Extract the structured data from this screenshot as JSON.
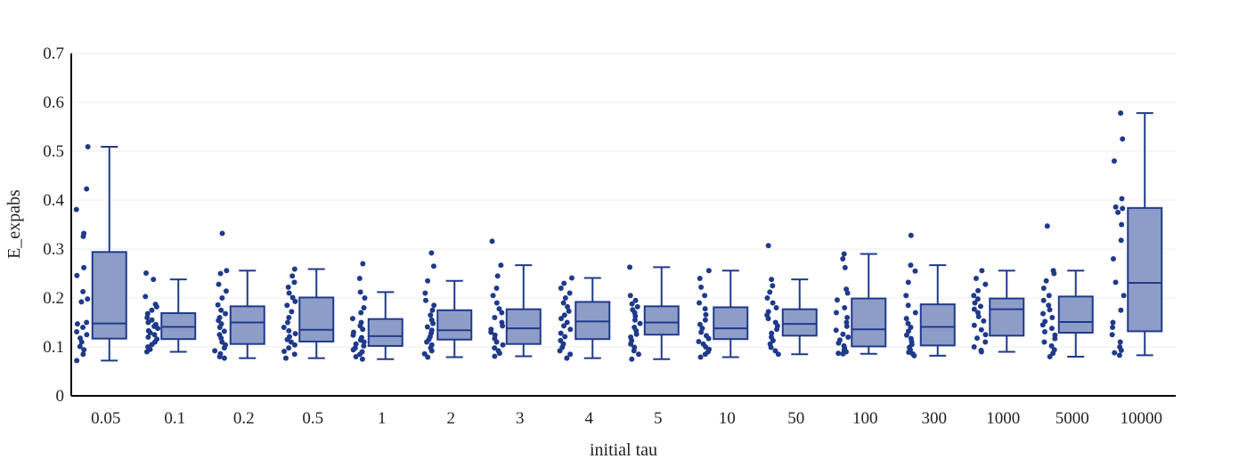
{
  "chart_data": {
    "type": "box",
    "title": "",
    "xlabel": "initial tau",
    "ylabel": "E_expabs",
    "ylim": [
      0,
      0.7
    ],
    "yticks": [
      0,
      0.1,
      0.2,
      0.3,
      0.4,
      0.5,
      0.6,
      0.7
    ],
    "ytick_labels": [
      "0",
      "0.1",
      "0.2",
      "0.3",
      "0.4",
      "0.5",
      "0.6",
      "0.7"
    ],
    "grid": true,
    "colors": {
      "box_fill": "#8e9dc8",
      "box_line": "#1f3a8a",
      "points": "#1f3a8a",
      "grid": "#eeeeee",
      "axis": "#000000"
    },
    "categories": [
      "0.05",
      "0.1",
      "0.2",
      "0.5",
      "1",
      "2",
      "3",
      "4",
      "5",
      "10",
      "50",
      "100",
      "300",
      "1000",
      "5000",
      "10000"
    ],
    "boxes": [
      {
        "q1": 0.117,
        "median": 0.148,
        "q3": 0.294,
        "whisker_low": 0.072,
        "whisker_high": 0.509
      },
      {
        "q1": 0.116,
        "median": 0.141,
        "q3": 0.169,
        "whisker_low": 0.09,
        "whisker_high": 0.238
      },
      {
        "q1": 0.106,
        "median": 0.15,
        "q3": 0.183,
        "whisker_low": 0.077,
        "whisker_high": 0.256
      },
      {
        "q1": 0.111,
        "median": 0.135,
        "q3": 0.201,
        "whisker_low": 0.077,
        "whisker_high": 0.259
      },
      {
        "q1": 0.102,
        "median": 0.122,
        "q3": 0.157,
        "whisker_low": 0.075,
        "whisker_high": 0.212
      },
      {
        "q1": 0.115,
        "median": 0.134,
        "q3": 0.175,
        "whisker_low": 0.079,
        "whisker_high": 0.235
      },
      {
        "q1": 0.106,
        "median": 0.138,
        "q3": 0.177,
        "whisker_low": 0.081,
        "whisker_high": 0.267
      },
      {
        "q1": 0.116,
        "median": 0.152,
        "q3": 0.192,
        "whisker_low": 0.077,
        "whisker_high": 0.241
      },
      {
        "q1": 0.125,
        "median": 0.15,
        "q3": 0.183,
        "whisker_low": 0.075,
        "whisker_high": 0.263
      },
      {
        "q1": 0.116,
        "median": 0.138,
        "q3": 0.181,
        "whisker_low": 0.079,
        "whisker_high": 0.256
      },
      {
        "q1": 0.123,
        "median": 0.147,
        "q3": 0.177,
        "whisker_low": 0.085,
        "whisker_high": 0.238
      },
      {
        "q1": 0.101,
        "median": 0.136,
        "q3": 0.199,
        "whisker_low": 0.086,
        "whisker_high": 0.29
      },
      {
        "q1": 0.103,
        "median": 0.141,
        "q3": 0.187,
        "whisker_low": 0.082,
        "whisker_high": 0.267
      },
      {
        "q1": 0.123,
        "median": 0.177,
        "q3": 0.199,
        "whisker_low": 0.09,
        "whisker_high": 0.256
      },
      {
        "q1": 0.129,
        "median": 0.151,
        "q3": 0.203,
        "whisker_low": 0.08,
        "whisker_high": 0.256
      },
      {
        "q1": 0.132,
        "median": 0.231,
        "q3": 0.384,
        "whisker_low": 0.083,
        "whisker_high": 0.578
      }
    ],
    "points": [
      [
        0.509,
        0.423,
        0.381,
        0.332,
        0.326,
        0.262,
        0.246,
        0.213,
        0.198,
        0.192,
        0.15,
        0.147,
        0.14,
        0.131,
        0.125,
        0.118,
        0.11,
        0.101,
        0.094,
        0.085,
        0.072
      ],
      [
        0.251,
        0.238,
        0.203,
        0.187,
        0.182,
        0.175,
        0.168,
        0.16,
        0.155,
        0.15,
        0.146,
        0.142,
        0.138,
        0.133,
        0.129,
        0.125,
        0.12,
        0.116,
        0.11,
        0.105,
        0.1,
        0.095,
        0.09
      ],
      [
        0.332,
        0.256,
        0.25,
        0.228,
        0.214,
        0.2,
        0.186,
        0.175,
        0.168,
        0.16,
        0.154,
        0.147,
        0.14,
        0.132,
        0.125,
        0.118,
        0.11,
        0.104,
        0.098,
        0.092,
        0.086,
        0.08,
        0.077
      ],
      [
        0.259,
        0.245,
        0.232,
        0.222,
        0.21,
        0.201,
        0.193,
        0.185,
        0.172,
        0.16,
        0.15,
        0.14,
        0.133,
        0.127,
        0.121,
        0.115,
        0.11,
        0.104,
        0.098,
        0.091,
        0.085,
        0.077
      ],
      [
        0.27,
        0.24,
        0.212,
        0.2,
        0.18,
        0.17,
        0.158,
        0.15,
        0.143,
        0.136,
        0.13,
        0.124,
        0.119,
        0.114,
        0.11,
        0.106,
        0.102,
        0.098,
        0.094,
        0.09,
        0.085,
        0.08,
        0.075
      ],
      [
        0.292,
        0.265,
        0.235,
        0.21,
        0.195,
        0.185,
        0.175,
        0.165,
        0.155,
        0.148,
        0.141,
        0.134,
        0.128,
        0.121,
        0.115,
        0.11,
        0.104,
        0.098,
        0.092,
        0.086,
        0.079
      ],
      [
        0.316,
        0.267,
        0.245,
        0.22,
        0.205,
        0.19,
        0.178,
        0.17,
        0.16,
        0.15,
        0.143,
        0.136,
        0.13,
        0.124,
        0.117,
        0.11,
        0.104,
        0.098,
        0.092,
        0.087,
        0.081
      ],
      [
        0.241,
        0.23,
        0.22,
        0.21,
        0.2,
        0.19,
        0.182,
        0.173,
        0.165,
        0.158,
        0.15,
        0.143,
        0.136,
        0.128,
        0.121,
        0.113,
        0.106,
        0.099,
        0.092,
        0.085,
        0.077
      ],
      [
        0.263,
        0.205,
        0.195,
        0.188,
        0.182,
        0.176,
        0.17,
        0.163,
        0.155,
        0.148,
        0.14,
        0.133,
        0.126,
        0.12,
        0.113,
        0.106,
        0.099,
        0.092,
        0.085,
        0.075
      ],
      [
        0.256,
        0.24,
        0.222,
        0.205,
        0.19,
        0.178,
        0.166,
        0.155,
        0.146,
        0.138,
        0.13,
        0.123,
        0.117,
        0.111,
        0.106,
        0.1,
        0.095,
        0.09,
        0.085,
        0.079
      ],
      [
        0.307,
        0.238,
        0.225,
        0.212,
        0.2,
        0.19,
        0.18,
        0.172,
        0.165,
        0.158,
        0.15,
        0.143,
        0.136,
        0.128,
        0.12,
        0.113,
        0.106,
        0.099,
        0.092,
        0.085
      ],
      [
        0.29,
        0.28,
        0.262,
        0.218,
        0.21,
        0.196,
        0.18,
        0.17,
        0.16,
        0.15,
        0.142,
        0.134,
        0.126,
        0.12,
        0.114,
        0.108,
        0.102,
        0.097,
        0.093,
        0.09,
        0.087,
        0.086
      ],
      [
        0.328,
        0.267,
        0.255,
        0.232,
        0.205,
        0.185,
        0.17,
        0.158,
        0.148,
        0.14,
        0.132,
        0.124,
        0.117,
        0.111,
        0.105,
        0.099,
        0.094,
        0.089,
        0.086,
        0.082
      ],
      [
        0.256,
        0.24,
        0.228,
        0.215,
        0.205,
        0.198,
        0.19,
        0.183,
        0.177,
        0.17,
        0.162,
        0.153,
        0.144,
        0.135,
        0.125,
        0.118,
        0.11,
        0.1,
        0.093,
        0.09
      ],
      [
        0.347,
        0.256,
        0.25,
        0.235,
        0.22,
        0.205,
        0.195,
        0.185,
        0.176,
        0.168,
        0.16,
        0.152,
        0.145,
        0.138,
        0.131,
        0.124,
        0.117,
        0.11,
        0.102,
        0.094,
        0.087,
        0.08
      ],
      [
        0.578,
        0.525,
        0.48,
        0.403,
        0.386,
        0.383,
        0.375,
        0.35,
        0.318,
        0.28,
        0.232,
        0.205,
        0.175,
        0.15,
        0.14,
        0.125,
        0.11,
        0.1,
        0.093,
        0.088,
        0.083
      ]
    ]
  }
}
